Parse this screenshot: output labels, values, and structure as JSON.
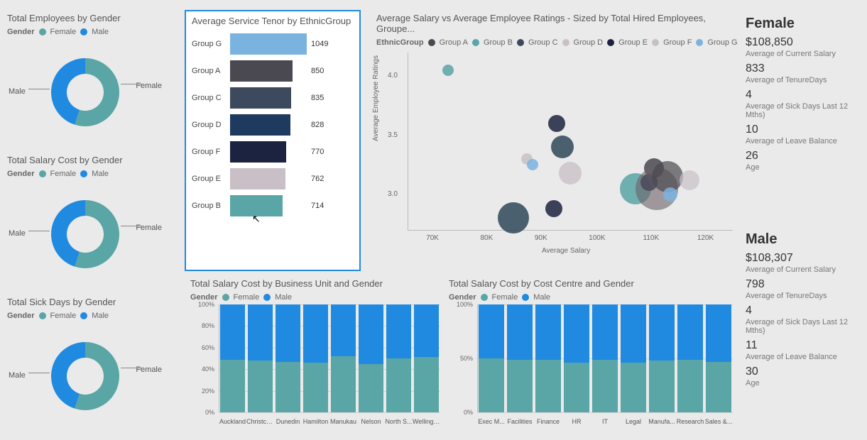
{
  "colors": {
    "female": "#5aa5a5",
    "male": "#1f8ae0",
    "bg": "#eaeaea",
    "grid": "#d0d0d0",
    "axis": "#bbbbbb",
    "select": "#1f8ae0"
  },
  "donuts": {
    "legend_label": "Gender",
    "legend_items": [
      "Female",
      "Male"
    ],
    "items": [
      {
        "title": "Total Employees by Gender",
        "female_pct": 55,
        "male_lbl": "Male",
        "female_lbl": "Female"
      },
      {
        "title": "Total Salary Cost by Gender",
        "female_pct": 55,
        "male_lbl": "Male",
        "female_lbl": "Female"
      },
      {
        "title": "Total Sick Days by Gender",
        "female_pct": 55,
        "male_lbl": "Male",
        "female_lbl": "Female"
      }
    ]
  },
  "tenor": {
    "title": "Average Service Tenor by EthnicGroup",
    "max": 1049,
    "bars": [
      {
        "label": "Group G",
        "value": 1049,
        "color": "#7bb3e0"
      },
      {
        "label": "Group A",
        "value": 850,
        "color": "#4a4850"
      },
      {
        "label": "Group C",
        "value": 835,
        "color": "#3d4a5e"
      },
      {
        "label": "Group D",
        "value": 828,
        "color": "#1e3a5f"
      },
      {
        "label": "Group F",
        "value": 770,
        "color": "#1b2340"
      },
      {
        "label": "Group E",
        "value": 762,
        "color": "#c9c0c7"
      },
      {
        "label": "Group B",
        "value": 714,
        "color": "#5aa5a5"
      }
    ]
  },
  "scatter": {
    "title": "Average Salary vs Average Employee Ratings - Sized by Total Hired Employees, Groupe...",
    "legend_label": "EthnicGroup",
    "legend_items": [
      {
        "label": "Group A",
        "color": "#4a4850"
      },
      {
        "label": "Group B",
        "color": "#5aa5a5"
      },
      {
        "label": "Group C",
        "color": "#3d4a5e"
      },
      {
        "label": "Group D",
        "color": "#c9c0c7"
      },
      {
        "label": "Group E",
        "color": "#1b2340"
      },
      {
        "label": "Group F",
        "color": "#c9c0c7"
      },
      {
        "label": "Group G",
        "color": "#7bb3e0"
      }
    ],
    "x_label": "Average Salary",
    "y_label": "Average Employee Ratings",
    "x_ticks": [
      70,
      80,
      90,
      100,
      110,
      120
    ],
    "x_tick_fmt": "K",
    "y_ticks": [
      3.0,
      3.5,
      4.0
    ],
    "xlim": [
      65,
      125
    ],
    "ylim": [
      2.7,
      4.2
    ],
    "points": [
      {
        "x": 72.5,
        "y": 4.05,
        "r": 8,
        "color": "#5aa5a5",
        "op": 0.85
      },
      {
        "x": 84.5,
        "y": 2.8,
        "r": 22,
        "color": "#2f4858",
        "op": 0.85
      },
      {
        "x": 87.0,
        "y": 3.3,
        "r": 8,
        "color": "#c9c0c7",
        "op": 0.85
      },
      {
        "x": 88.0,
        "y": 3.25,
        "r": 8,
        "color": "#7bb3e0",
        "op": 0.85
      },
      {
        "x": 93.5,
        "y": 3.4,
        "r": 16,
        "color": "#2f4858",
        "op": 0.85
      },
      {
        "x": 92.0,
        "y": 2.88,
        "r": 12,
        "color": "#1b2340",
        "op": 0.85
      },
      {
        "x": 92.5,
        "y": 3.6,
        "r": 12,
        "color": "#1b2340",
        "op": 0.85
      },
      {
        "x": 95.0,
        "y": 3.18,
        "r": 16,
        "color": "#c9c0c7",
        "op": 0.8
      },
      {
        "x": 107.0,
        "y": 3.05,
        "r": 22,
        "color": "#5aa5a5",
        "op": 0.85
      },
      {
        "x": 109.5,
        "y": 3.1,
        "r": 12,
        "color": "#1b2340",
        "op": 0.85
      },
      {
        "x": 110.5,
        "y": 3.22,
        "r": 14,
        "color": "#4a4850",
        "op": 0.85
      },
      {
        "x": 111.0,
        "y": 3.05,
        "r": 30,
        "color": "#6b6168",
        "op": 0.6
      },
      {
        "x": 113.0,
        "y": 3.15,
        "r": 22,
        "color": "#4a4850",
        "op": 0.7
      },
      {
        "x": 117.0,
        "y": 3.12,
        "r": 14,
        "color": "#c9c0c7",
        "op": 0.7
      },
      {
        "x": 113.5,
        "y": 3.0,
        "r": 10,
        "color": "#7bb3e0",
        "op": 0.85
      }
    ]
  },
  "stacked_bu": {
    "title": "Total Salary Cost by Business Unit and Gender",
    "y_ticks": [
      0,
      20,
      40,
      60,
      80,
      100
    ],
    "y_suffix": "%",
    "cats": [
      "Auckland",
      "Christch...",
      "Dunedin",
      "Hamilton",
      "Manukau",
      "Nelson",
      "North S...",
      "Wellingt..."
    ],
    "female_pct": [
      49,
      48,
      47,
      46,
      52,
      45,
      50,
      51
    ]
  },
  "stacked_cc": {
    "title": "Total Salary Cost by Cost Centre and Gender",
    "y_ticks": [
      0,
      50,
      100
    ],
    "y_suffix": "%",
    "cats": [
      "Exec M...",
      "Facilities",
      "Finance",
      "HR",
      "IT",
      "Legal",
      "Manufa...",
      "Research",
      "Sales &..."
    ],
    "female_pct": [
      50,
      49,
      49,
      46,
      49,
      46,
      48,
      49,
      47
    ]
  },
  "stacked_legend": {
    "label": "Gender",
    "items": [
      "Female",
      "Male"
    ]
  },
  "cards": {
    "female": {
      "header": "Female",
      "items": [
        {
          "value": "$108,850",
          "label": "Average of Current Salary"
        },
        {
          "value": "833",
          "label": "Average of TenureDays"
        },
        {
          "value": "4",
          "label": "Average of Sick Days Last 12 Mths)"
        },
        {
          "value": "10",
          "label": "Average of Leave Balance"
        },
        {
          "value": "26",
          "label": "Age"
        }
      ]
    },
    "male": {
      "header": "Male",
      "items": [
        {
          "value": "$108,307",
          "label": "Average of Current Salary"
        },
        {
          "value": "798",
          "label": "Average of TenureDays"
        },
        {
          "value": "4",
          "label": "Average of Sick Days Last 12 Mths)"
        },
        {
          "value": "11",
          "label": "Average of Leave Balance"
        },
        {
          "value": "30",
          "label": "Age"
        }
      ]
    }
  }
}
